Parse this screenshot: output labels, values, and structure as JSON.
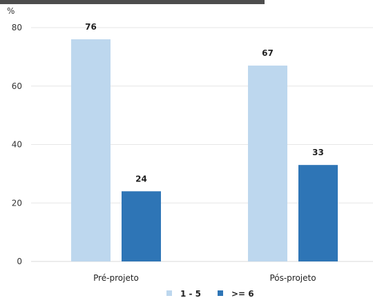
{
  "chart_data": {
    "type": "bar",
    "categories": [
      "Pré-projeto",
      "Pós-projeto"
    ],
    "series": [
      {
        "name": "1 - 5",
        "values": [
          76,
          67
        ],
        "color": "#bdd7ee"
      },
      {
        "name": ">= 6",
        "values": [
          24,
          33
        ],
        "color": "#2e75b6"
      }
    ],
    "data_labels": [
      [
        "76",
        "67"
      ],
      [
        "24",
        "33"
      ]
    ],
    "ylabel": "%",
    "ylim": [
      0,
      80
    ],
    "yticks": [
      0,
      20,
      40,
      60,
      80
    ],
    "grid": true,
    "legend": "bottom",
    "axis_color": "#d9d9d9",
    "grid_color": "#e6e6e6"
  }
}
